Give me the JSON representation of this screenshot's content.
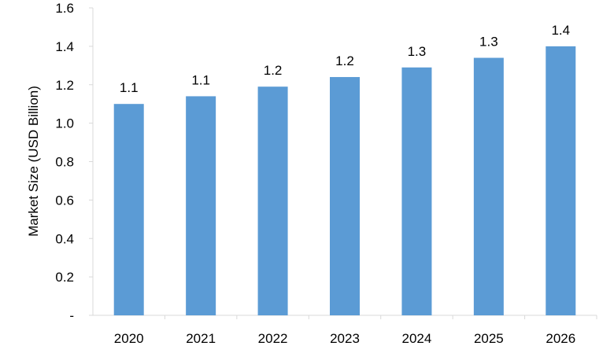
{
  "chart_data": {
    "type": "bar",
    "categories": [
      "2020",
      "2021",
      "2022",
      "2023",
      "2024",
      "2025",
      "2026"
    ],
    "values": [
      1.1,
      1.14,
      1.19,
      1.24,
      1.29,
      1.34,
      1.4
    ],
    "data_labels": [
      "1.1",
      "1.1",
      "1.2",
      "1.2",
      "1.3",
      "1.3",
      "1.4"
    ],
    "y_ticks": [
      0,
      0.2,
      0.4,
      0.6,
      0.8,
      1.0,
      1.2,
      1.4,
      1.6
    ],
    "y_tick_labels": [
      "-",
      "0.2",
      "0.4",
      "0.6",
      "0.8",
      "1.0",
      "1.2",
      "1.4",
      "1.6"
    ],
    "title": "",
    "xlabel": "",
    "ylabel": "Market Size (USD Billion)",
    "ylim": [
      0,
      1.6
    ],
    "grid": false,
    "legend": "none",
    "bar_color": "#5b9bd5",
    "axis_color": "#d9d9d9"
  }
}
